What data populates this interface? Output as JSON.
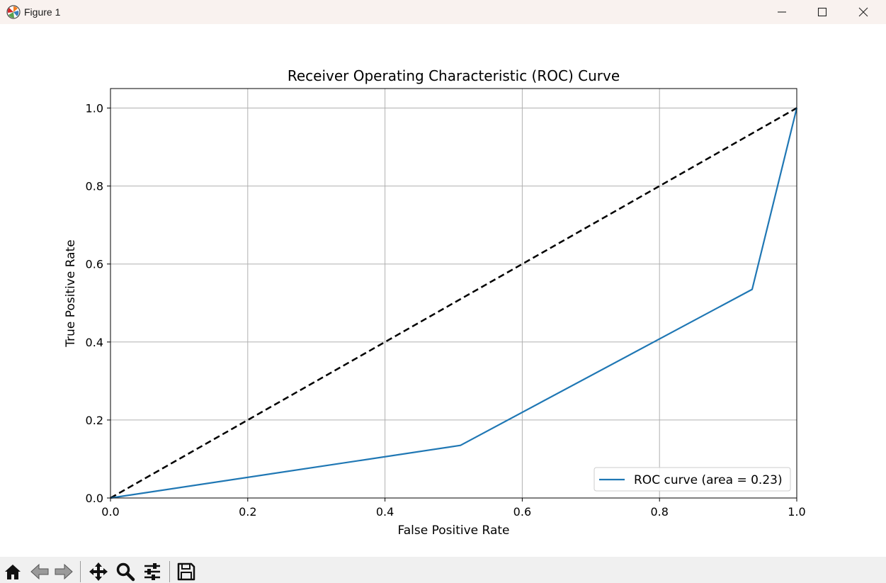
{
  "window": {
    "title": "Figure 1",
    "icons": [
      "matplotlib-logo-icon",
      "minimize-icon",
      "maximize-icon",
      "close-icon"
    ]
  },
  "toolbar": {
    "buttons": [
      "home-icon",
      "back-icon",
      "forward-icon",
      "pan-icon",
      "zoom-icon",
      "configure-subplots-icon",
      "save-icon"
    ]
  },
  "chart_data": {
    "type": "line",
    "title": "Receiver Operating Characteristic (ROC) Curve",
    "xlabel": "False Positive Rate",
    "ylabel": "True Positive Rate",
    "xlim": [
      0.0,
      1.0
    ],
    "ylim": [
      0.0,
      1.05
    ],
    "xticks": [
      "0.0",
      "0.2",
      "0.4",
      "0.6",
      "0.8",
      "1.0"
    ],
    "yticks": [
      "0.0",
      "0.2",
      "0.4",
      "0.6",
      "0.8",
      "1.0"
    ],
    "grid": true,
    "legend_position": "lower-right",
    "series": [
      {
        "name": "ROC curve (area = 0.23)",
        "color": "#1f77b4",
        "style": "solid",
        "x": [
          0.0,
          0.51,
          0.935,
          1.0
        ],
        "y": [
          0.0,
          0.135,
          0.535,
          1.0
        ]
      },
      {
        "color": "#000000",
        "style": "dashed",
        "x": [
          0.0,
          1.0
        ],
        "y": [
          0.0,
          1.0
        ]
      }
    ]
  }
}
